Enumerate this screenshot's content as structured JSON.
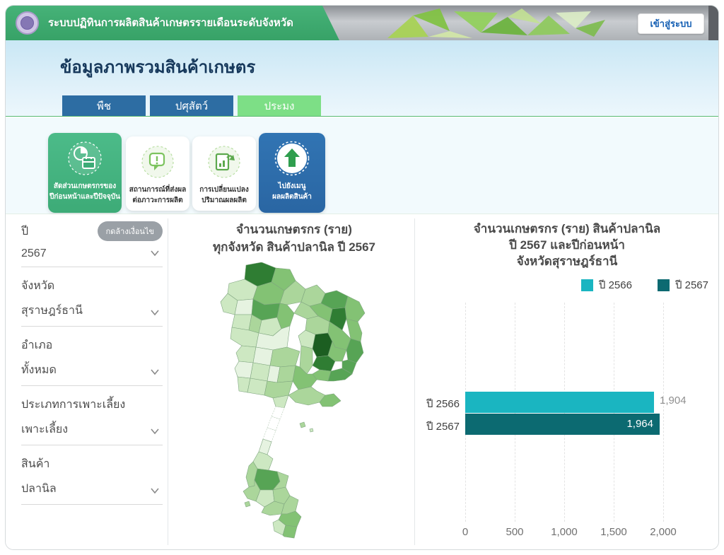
{
  "header": {
    "app_title": "ระบบปฏิทินการผลิตสินค้าเกษตรรายเดือนระดับจังหวัด",
    "login_label": "เข้าสู่ระบบ"
  },
  "page": {
    "title": "ข้อมูลภาพรวมสินค้าเกษตร"
  },
  "tabs": [
    {
      "label": "พืช",
      "active": false
    },
    {
      "label": "ปศุสัตว์",
      "active": false
    },
    {
      "label": "ประมง",
      "active": true
    }
  ],
  "action_cards": [
    {
      "icon": "pie-calendar-icon",
      "line1": "สัดส่วนเกษตรกรของ",
      "line2": "ปีก่อนหน้าและปีปัจจุบัน",
      "style": "green"
    },
    {
      "icon": "alert-bubble-icon",
      "line1": "สถานการณ์ที่ส่งผล",
      "line2": "ต่อภาวะการผลิต",
      "style": "white"
    },
    {
      "icon": "report-change-icon",
      "line1": "การเปลี่ยนแปลง",
      "line2": "ปริมาณผลผลิต",
      "style": "white"
    },
    {
      "icon": "up-arrow-icon",
      "line1": "ไปยังเมนู",
      "line2": "ผลผลิตสินค้า",
      "style": "blue"
    }
  ],
  "filters": {
    "clear_button": "กดล้างเงื่อนไข",
    "fields": [
      {
        "label": "ปี",
        "value": "2567"
      },
      {
        "label": "จังหวัด",
        "value": "สุราษฎร์ธานี"
      },
      {
        "label": "อำเภอ",
        "value": "ทั้งหมด"
      },
      {
        "label": "ประเภทการเพาะเลี้ยง",
        "value": "เพาะเลี้ยง"
      },
      {
        "label": "สินค้า",
        "value": "ปลานิล"
      }
    ]
  },
  "map_panel": {
    "title_line1": "จำนวนเกษตรกร (ราย)",
    "title_line2": "ทุกจังหวัด สินค้าปลานิล ปี 2567"
  },
  "bar_panel": {
    "title_line1": "จำนวนเกษตรกร (ราย) สินค้าปลานิล",
    "title_line2": "ปี 2567 และปีก่อนหน้า",
    "title_line3": "จังหวัดสุราษฎร์ธานี"
  },
  "chart_data": [
    {
      "type": "choropleth",
      "title": "จำนวนเกษตรกร (ราย) ทุกจังหวัด สินค้าปลานิล ปี 2567",
      "region": "Thailand provinces",
      "palette": [
        "#ffffff",
        "#e6f3e1",
        "#cde8c2",
        "#abd69b",
        "#83c274",
        "#57a455",
        "#2f7d33",
        "#1c5e21"
      ],
      "note": "province-level values are not labeled in the screenshot; darker green = more farmers"
    },
    {
      "type": "bar",
      "orientation": "horizontal",
      "title": "จำนวนเกษตรกร (ราย) สินค้าปลานิล ปี 2567 และปีก่อนหน้า จังหวัดสุราษฎร์ธานี",
      "categories": [
        "ปี 2566",
        "ปี 2567"
      ],
      "values": [
        1904,
        1964
      ],
      "value_labels": [
        "1,904",
        "1,964"
      ],
      "colors": [
        "#1ab5c1",
        "#0c6a71"
      ],
      "legend": [
        {
          "label": "ปี 2566",
          "color": "#1ab5c1"
        },
        {
          "label": "ปี 2567",
          "color": "#0c6a71"
        }
      ],
      "xlim": [
        0,
        2000
      ],
      "x_ticks": [
        "0",
        "500",
        "1,000",
        "1,500",
        "2,000"
      ],
      "grid": "vertical-dashed",
      "legend_position": "top-right"
    }
  ],
  "colors": {
    "header_green": "#3aa96e",
    "tab_blue": "#2d6da3",
    "tab_active_green": "#7ddf86",
    "card_green": "#45b583",
    "card_blue": "#2e6fae",
    "accent_teal": "#1ab5c1",
    "accent_dark_teal": "#0c6a71"
  }
}
